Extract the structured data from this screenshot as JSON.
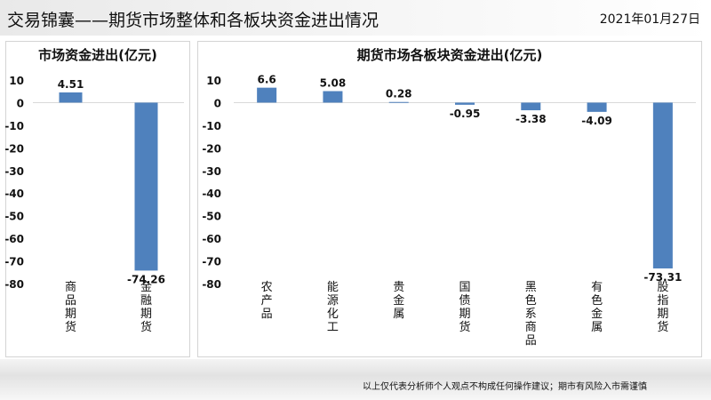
{
  "header": {
    "title": "交易锦囊——期货市场整体和各板块资金进出情况",
    "date": "2021年01月27日"
  },
  "colors": {
    "bar": "#4f81bd",
    "axis": "#d9d9d9"
  },
  "chart_data": [
    {
      "type": "bar",
      "title": "市场资金进出(亿元)",
      "categories": [
        "商品期货",
        "金融期货"
      ],
      "values": [
        4.51,
        -74.26
      ],
      "ylim": [
        -80,
        10
      ],
      "yticks": [
        "10",
        "0",
        "-10",
        "-20",
        "-30",
        "-40",
        "-50",
        "-60",
        "-70",
        "-80"
      ],
      "data_labels": [
        "4.51",
        "-74.26"
      ],
      "grid": false
    },
    {
      "type": "bar",
      "title": "期货市场各板块资金进出(亿元)",
      "categories": [
        "农产品",
        "能源化工",
        "贵金属",
        "国债期货",
        "黑色系商品",
        "有色金属",
        "股指期货"
      ],
      "values": [
        6.6,
        5.08,
        0.28,
        -0.95,
        -3.38,
        -4.09,
        -73.31
      ],
      "ylim": [
        -80,
        10
      ],
      "yticks": [
        "10",
        "0",
        "-10",
        "-20",
        "-30",
        "-40",
        "-50",
        "-60",
        "-70",
        "-80"
      ],
      "data_labels": [
        "6.6",
        "5.08",
        "0.28",
        "-0.95",
        "-3.38",
        "-4.09",
        "-73.31"
      ],
      "grid": false
    }
  ],
  "footer": {
    "disclaimer": "以上仅代表分析师个人观点不构成任何操作建议；期市有风险入市需谨慎"
  }
}
